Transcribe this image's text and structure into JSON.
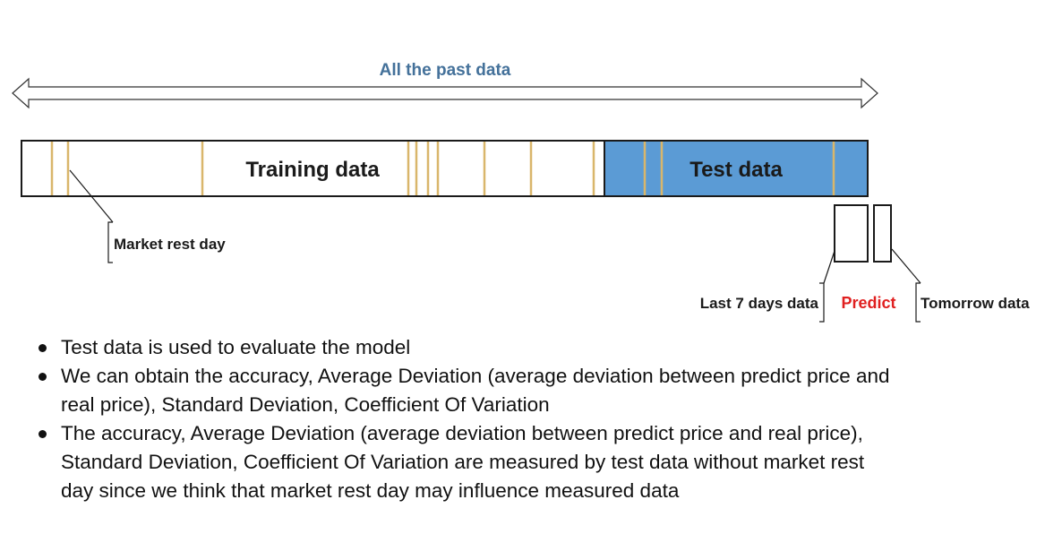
{
  "diagram": {
    "span_label": "All the past data",
    "training_label": "Training data",
    "test_label": "Test data",
    "market_rest_label": "Market rest day",
    "last7_label": "Last 7 days data",
    "predict_label": "Predict",
    "tomorrow_label": "Tomorrow data",
    "colors": {
      "span_label": "#44719a",
      "test_fill": "#5b9bd5",
      "rest_day_line": "#d9b66b",
      "predict": "#e02020"
    }
  },
  "notes": [
    "Test data is used to evaluate the model",
    "We can obtain the accuracy, Average Deviation (average deviation between predict price and real price), Standard Deviation, Coefficient Of Variation",
    "The accuracy, Average Deviation (average deviation between predict price and real price), Standard Deviation, Coefficient Of Variation are measured by test data without market rest day since we think that market rest day may influence measured data"
  ]
}
